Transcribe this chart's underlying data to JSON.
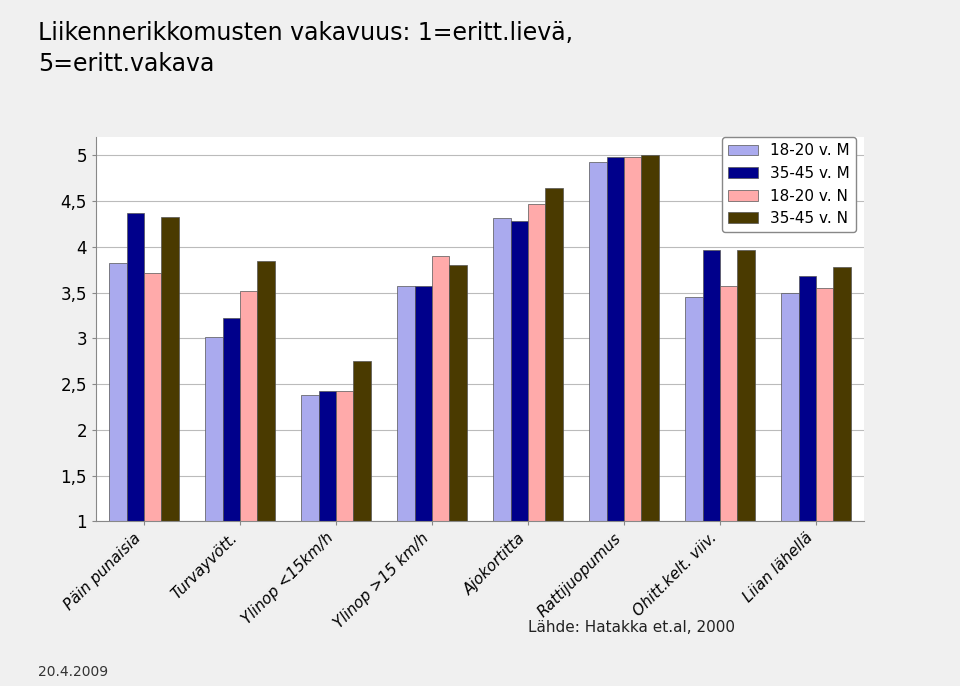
{
  "title": "Liikennerikkomusten vakavuus: 1=eritt.lievä,\n5=eritt.vakava",
  "categories": [
    "Päin punaisia",
    "Turvayvött.",
    "Ylinop <15km/h",
    "Ylinop >15 km/h",
    "Ajokortitta",
    "Rattijuopumus",
    "Ohitt.kelt. viiv.",
    "Liian lähellä"
  ],
  "series": [
    {
      "label": "18-20 v. M",
      "color": "#aaaaee",
      "values": [
        3.82,
        3.02,
        2.38,
        3.57,
        4.32,
        4.93,
        3.45,
        3.5
      ]
    },
    {
      "label": "35-45 v. M",
      "color": "#00008B",
      "values": [
        4.37,
        3.22,
        2.42,
        3.57,
        4.28,
        4.98,
        3.97,
        3.68
      ]
    },
    {
      "label": "18-20 v. N",
      "color": "#ffaaaa",
      "values": [
        3.72,
        3.52,
        2.42,
        3.9,
        4.47,
        4.98,
        3.57,
        3.55
      ]
    },
    {
      "label": "35-45 v. N",
      "color": "#4a3a00",
      "values": [
        4.33,
        3.85,
        2.75,
        3.8,
        4.65,
        5.0,
        3.97,
        3.78
      ]
    }
  ],
  "ylim": [
    1,
    5.2
  ],
  "yticks": [
    1,
    1.5,
    2,
    2.5,
    3,
    3.5,
    4,
    4.5,
    5
  ],
  "ytick_labels": [
    "1",
    "1,5",
    "2",
    "2,5",
    "3",
    "3,5",
    "4",
    "4,5",
    "5"
  ],
  "footer_left": "20.4.2009",
  "footer_right": "Lähde: Hatakka et.al, 2000",
  "background_color": "#f0f0f0",
  "plot_bg_color": "#ffffff",
  "grid_color": "#bbbbbb",
  "bar_width": 0.18
}
